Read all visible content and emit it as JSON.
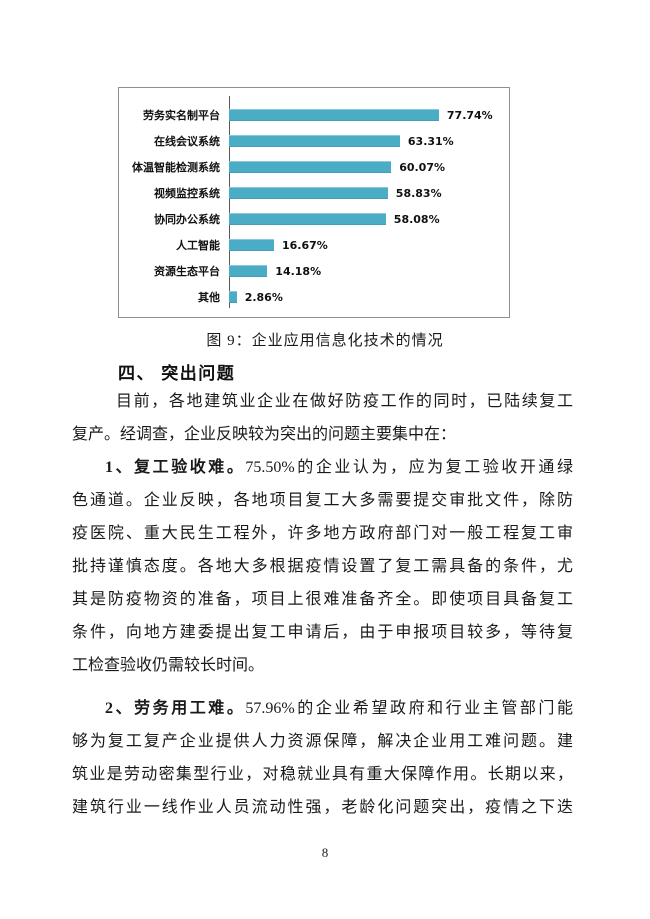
{
  "chart_data": {
    "type": "bar",
    "orientation": "horizontal",
    "categories": [
      "劳务实名制平台",
      "在线会议系统",
      "体温智能检测系统",
      "视频监控系统",
      "协同办公系统",
      "人工智能",
      "资源生态平台",
      "其他"
    ],
    "values": [
      77.74,
      63.31,
      60.07,
      58.83,
      58.08,
      16.67,
      14.18,
      2.86
    ],
    "value_labels": [
      "77.74%",
      "63.31%",
      "60.07%",
      "58.83%",
      "58.08%",
      "16.67%",
      "14.18%",
      "2.86%"
    ],
    "xlim": [
      0,
      100
    ],
    "bar_color": "#4BACC6",
    "grid": false,
    "legend": false,
    "title": "图 9：企业应用信息化技术的情况"
  },
  "figure": {
    "caption": "图 9：企业应用信息化技术的情况"
  },
  "section": {
    "heading": "四、 突出问题"
  },
  "body": {
    "paragraphs": [
      {
        "lines": [
          {
            "fill": true,
            "first": true,
            "segments": [
              {
                "bold": false,
                "text": "目前，各地建筑业企业在做好防疫工作的同时，已陆续复工"
              }
            ]
          },
          {
            "fill": false,
            "first": false,
            "segments": [
              {
                "bold": false,
                "text": "复产。经调查，企业反映较为突出的问题主要集中在："
              }
            ]
          }
        ]
      },
      {
        "lines": [
          {
            "fill": true,
            "first": true,
            "segments": [
              {
                "bold": true,
                "text": "1、复工验收难。"
              },
              {
                "bold": false,
                "text": "75.50%的企业认为，应为复工验收开通绿"
              }
            ]
          },
          {
            "fill": true,
            "first": false,
            "segments": [
              {
                "bold": false,
                "text": "色通道。企业反映，各地项目复工大多需要提交审批文件，除防"
              }
            ]
          },
          {
            "fill": true,
            "first": false,
            "segments": [
              {
                "bold": false,
                "text": "疫医院、重大民生工程外，许多地方政府部门对一般工程复工审"
              }
            ]
          },
          {
            "fill": true,
            "first": false,
            "segments": [
              {
                "bold": false,
                "text": "批持谨慎态度。各地大多根据疫情设置了复工需具备的条件，尤"
              }
            ]
          },
          {
            "fill": true,
            "first": false,
            "segments": [
              {
                "bold": false,
                "text": "其是防疫物资的准备，项目上很难准备齐全。即使项目具备复工"
              }
            ]
          },
          {
            "fill": true,
            "first": false,
            "segments": [
              {
                "bold": false,
                "text": "条件，向地方建委提出复工申请后，由于申报项目较多，等待复"
              }
            ]
          },
          {
            "fill": false,
            "first": false,
            "segments": [
              {
                "bold": false,
                "text": "工检查验收仍需较长时间。"
              }
            ]
          }
        ]
      },
      {
        "spaced": true,
        "lines": [
          {
            "fill": true,
            "first": true,
            "segments": [
              {
                "bold": true,
                "text": "2、劳务用工难。"
              },
              {
                "bold": false,
                "text": "57.96%的企业希望政府和行业主管部门能"
              }
            ]
          },
          {
            "fill": true,
            "first": false,
            "segments": [
              {
                "bold": false,
                "text": "够为复工复产企业提供人力资源保障，解决企业用工难问题。建"
              }
            ]
          },
          {
            "fill": true,
            "first": false,
            "segments": [
              {
                "bold": false,
                "text": "筑业是劳动密集型行业，对稳就业具有重大保障作用。长期以来，"
              }
            ]
          },
          {
            "fill": true,
            "first": false,
            "segments": [
              {
                "bold": false,
                "text": "建筑行业一线作业人员流动性强，老龄化问题突出，疫情之下迭"
              }
            ]
          }
        ]
      }
    ]
  },
  "footer": {
    "page_number": "8"
  }
}
